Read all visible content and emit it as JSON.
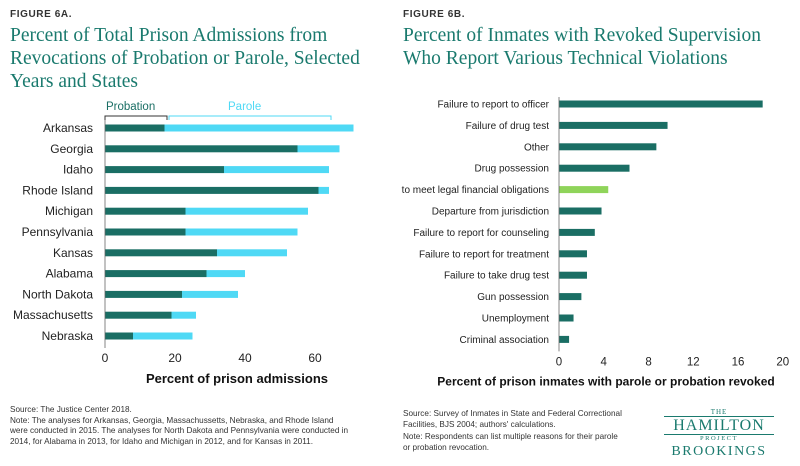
{
  "left": {
    "figure_label": "FIGURE 6A.",
    "title_lines": [
      "Percent of Total Prison Admissions from",
      "Revocations of Probation or Parole, Selected",
      "Years and States"
    ],
    "source": "Source: The Justice Center 2018.",
    "note_lines": [
      "Note: The analyses for Arkansas, Georgia, Massachussetts, Nebraska, and Rhode Island",
      "were conducted in 2015. The analyses for North Dakota and Pennsylvania were conducted in",
      "2014, for Alabama in 2013, for Idaho and Michigan in 2012, and for Kansas in 2011."
    ]
  },
  "right": {
    "figure_label": "FIGURE 6B.",
    "title_lines": [
      "Percent of Inmates with Revoked Supervision",
      "Who Report Various Technical Violations"
    ],
    "source_lines": [
      "Source: Survey of Inmates in State and Federal Correctional",
      "Facilities, BJS 2004; authors' calculations."
    ],
    "note_lines": [
      "Note: Respondents can list multiple reasons for their parole",
      "or probation revocation."
    ]
  },
  "logo": {
    "the": "THE",
    "hamilton": "HAMILTON",
    "project": "PROJECT",
    "brookings": "BROOKINGS"
  },
  "colors": {
    "dark_teal": "#1a6e64",
    "light_blue": "#4fd9f5",
    "light_green": "#8fd45a",
    "title_teal": "#1a7a6e"
  },
  "chart_data": [
    {
      "type": "bar",
      "orientation": "horizontal",
      "stacked": true,
      "categories": [
        "Arkansas",
        "Georgia",
        "Idaho",
        "Rhode Island",
        "Michigan",
        "Pennsylvania",
        "Kansas",
        "Alabama",
        "North Dakota",
        "Massachusetts",
        "Nebraska"
      ],
      "series": [
        {
          "name": "Probation",
          "values": [
            17,
            55,
            34,
            61,
            23,
            23,
            32,
            29,
            22,
            19,
            8
          ],
          "color": "#1a6e64"
        },
        {
          "name": "Parole",
          "values": [
            54,
            12,
            30,
            3,
            35,
            32,
            20,
            11,
            16,
            7,
            17
          ],
          "color": "#4fd9f5"
        }
      ],
      "xlabel": "Percent of prison admissions",
      "xlim": [
        0,
        70
      ],
      "xticks": [
        0,
        20,
        40,
        60
      ],
      "grid": false,
      "legend": "top-left"
    },
    {
      "type": "bar",
      "orientation": "horizontal",
      "categories": [
        "Failure to report to officer",
        "Failure of drug test",
        "Other",
        "Drug possession",
        "Failure to meet legal financial obligations",
        "Departure from jurisdiction",
        "Failure to report for counseling",
        "Failure to report for treatment",
        "Failure to take drug test",
        "Gun possession",
        "Unemployment",
        "Criminal association"
      ],
      "values": [
        18.2,
        9.7,
        8.7,
        6.3,
        4.4,
        3.8,
        3.2,
        2.5,
        2.5,
        2.0,
        1.3,
        0.9
      ],
      "highlight": "Failure to meet legal financial obligations",
      "xlabel": "Percent of prison inmates with parole or probation revoked",
      "xlim": [
        0,
        21
      ],
      "xticks": [
        0,
        4,
        8,
        12,
        16,
        20
      ],
      "grid": false
    }
  ]
}
